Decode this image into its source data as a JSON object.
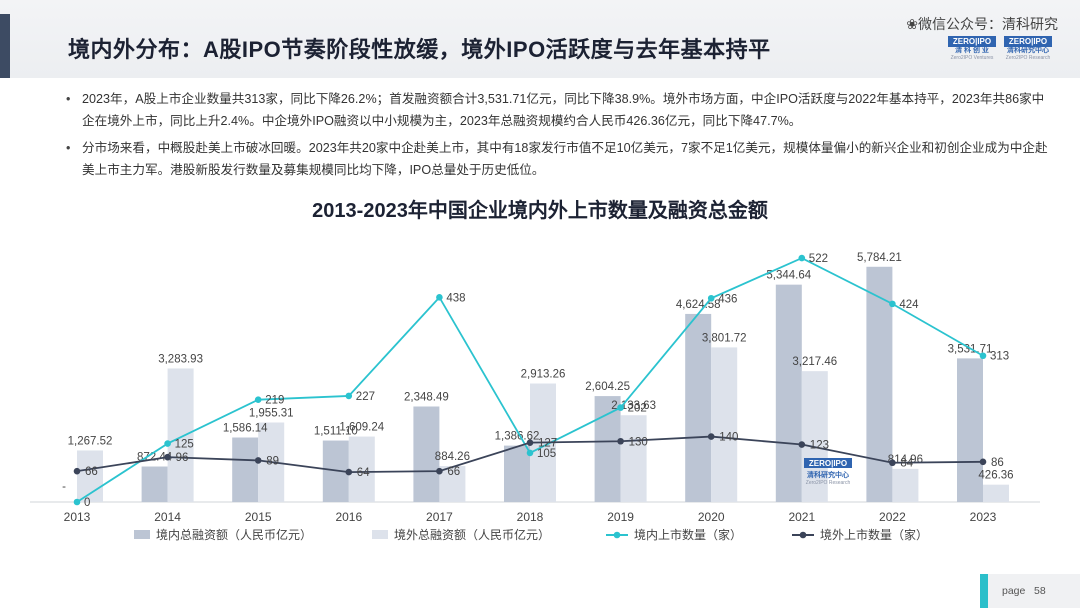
{
  "header": {
    "title": "境内外分布：A股IPO节奏阶段性放缓，境外IPO活跃度与去年基本持平",
    "watermark": "微信公众号：清科研究",
    "logo_left": {
      "top": "ZERO|IPO",
      "mid": "清 科 创 业",
      "bot": "Zero2IPO Ventures"
    },
    "logo_right": {
      "top": "ZERO|IPO",
      "mid": "清科研究中心",
      "bot": "Zero2IPO Research"
    }
  },
  "bullets": [
    "2023年，A股上市企业数量共313家，同比下降26.2%；首发融资额合计3,531.71亿元，同比下降38.9%。境外市场方面，中企IPO活跃度与2022年基本持平，2023年共86家中企在境外上市，同比上升2.4%。中企境外IPO融资以中小规模为主，2023年总融资规模约合人民币426.36亿元，同比下降47.7%。",
    "分市场来看，中概股赴美上市破冰回暖。2023年共20家中企赴美上市，其中有18家发行市值不足10亿美元，7家不足1亿美元，规模体量偏小的新兴企业和初创企业成为中企赴美上市主力军。港股新股发行数量及募集规模同比均下降，IPO总量处于历史低位。"
  ],
  "chart_data": {
    "type": "bar",
    "title": "2013-2023年中国企业境内外上市数量及融资总金额",
    "categories": [
      "2013",
      "2014",
      "2015",
      "2016",
      "2017",
      "2018",
      "2019",
      "2020",
      "2021",
      "2022",
      "2023"
    ],
    "series": [
      {
        "name": "境内总融资额（人民币亿元）",
        "kind": "bar",
        "color": "#bcc5d4",
        "values": [
          0,
          872.44,
          1586.14,
          1511.1,
          2348.49,
          1386.62,
          2604.25,
          4624.58,
          5344.64,
          5784.21,
          3531.71
        ],
        "labels": [
          "-",
          "872.44",
          "1,586.14",
          "1,511.10",
          "2,348.49",
          "1,386.62",
          "2,604.25",
          "4,624.58",
          "5,344.64",
          "5,784.21",
          "3,531.71"
        ]
      },
      {
        "name": "境外总融资额（人民币亿元）",
        "kind": "bar",
        "color": "#dde2eb",
        "values": [
          1267.52,
          3283.93,
          1955.31,
          1609.24,
          884.26,
          2913.26,
          2133.63,
          3801.72,
          3217.46,
          814.96,
          426.36
        ],
        "labels": [
          "1,267.52",
          "3,283.93",
          "1,955.31",
          "1,609.24",
          "884.26",
          "2,913.26",
          "2,133.63",
          "3,801.72",
          "3,217.46",
          "814.96",
          "426.36"
        ]
      },
      {
        "name": "境内上市数量（家）",
        "kind": "line",
        "color": "#2bc3cf",
        "values": [
          0,
          125,
          219,
          227,
          438,
          105,
          202,
          436,
          522,
          424,
          313
        ]
      },
      {
        "name": "境外上市数量（家）",
        "kind": "line",
        "color": "#3b4459",
        "values": [
          66,
          96,
          89,
          64,
          66,
          127,
          130,
          140,
          123,
          84,
          86
        ]
      }
    ],
    "ylim_bars": [
      0,
      6000
    ],
    "ylim_lines": [
      0,
      550
    ],
    "legend_position": "bottom",
    "watermark_logo": {
      "top": "ZERO|IPO",
      "mid": "清科研究中心",
      "bot": "Zero2IPO Research"
    }
  },
  "footer": {
    "page_label": "page",
    "page_number": "58"
  }
}
